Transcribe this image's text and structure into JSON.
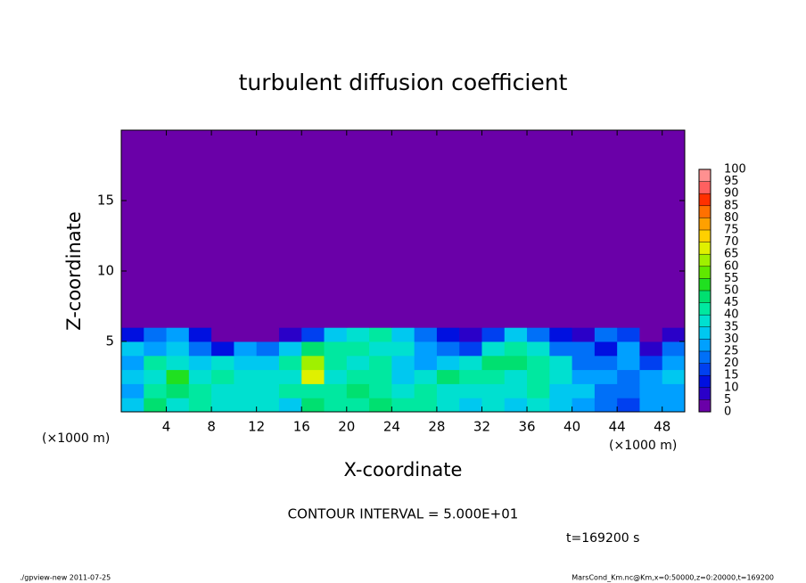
{
  "chart_data": {
    "type": "heatmap",
    "title": "turbulent diffusion coefficient",
    "x_label": "X-coordinate",
    "y_label": "Z-coordinate",
    "x_unit": "(×1000 m)",
    "xlim": [
      0,
      50
    ],
    "xticks": [
      4,
      8,
      12,
      16,
      20,
      24,
      28,
      32,
      36,
      40,
      44,
      48
    ],
    "ylim": [
      0,
      20
    ],
    "yticks": [
      5,
      10,
      15
    ],
    "x_edges": [
      0,
      2,
      4,
      6,
      8,
      10,
      12,
      14,
      16,
      18,
      20,
      22,
      24,
      26,
      28,
      30,
      32,
      34,
      36,
      38,
      40,
      42,
      44,
      46,
      48,
      50
    ],
    "y_edges": [
      0,
      1,
      2,
      3,
      4,
      5,
      6,
      7
    ],
    "values": [
      [
        30,
        45,
        35,
        40,
        35,
        35,
        35,
        30,
        45,
        40,
        40,
        45,
        40,
        40,
        35,
        30,
        35,
        30,
        35,
        30,
        25,
        20,
        15,
        25,
        25
      ],
      [
        25,
        40,
        45,
        40,
        35,
        35,
        35,
        40,
        40,
        40,
        45,
        40,
        35,
        40,
        35,
        35,
        35,
        35,
        40,
        30,
        30,
        20,
        20,
        25,
        25
      ],
      [
        30,
        35,
        50,
        35,
        40,
        35,
        35,
        35,
        65,
        35,
        40,
        40,
        30,
        35,
        45,
        40,
        40,
        35,
        40,
        35,
        25,
        25,
        20,
        25,
        30
      ],
      [
        25,
        40,
        35,
        30,
        35,
        30,
        30,
        40,
        60,
        40,
        35,
        40,
        30,
        25,
        30,
        35,
        45,
        45,
        40,
        35,
        20,
        20,
        25,
        15,
        25
      ],
      [
        30,
        25,
        30,
        20,
        10,
        25,
        20,
        30,
        45,
        40,
        40,
        35,
        35,
        25,
        20,
        15,
        35,
        40,
        35,
        20,
        20,
        10,
        25,
        5,
        20
      ],
      [
        10,
        20,
        25,
        10,
        0,
        0,
        0,
        5,
        15,
        30,
        35,
        40,
        30,
        20,
        10,
        5,
        15,
        30,
        20,
        10,
        5,
        20,
        15,
        0,
        5
      ],
      [
        0,
        0,
        0,
        0,
        0,
        0,
        0,
        0,
        0,
        0,
        0,
        0,
        0,
        0,
        0,
        0,
        0,
        0,
        0,
        0,
        0,
        0,
        0,
        0,
        0
      ]
    ],
    "levels": [
      0,
      5,
      10,
      15,
      20,
      25,
      30,
      35,
      40,
      45,
      50,
      55,
      60,
      65,
      70,
      75,
      80,
      85,
      90,
      95,
      100
    ],
    "colors": [
      "#6a00a8",
      "#2a00c8",
      "#0010e0",
      "#0040f0",
      "#0070f8",
      "#00a0ff",
      "#00c8f0",
      "#00e0d0",
      "#00e8a0",
      "#00e070",
      "#20e020",
      "#60e800",
      "#a0f000",
      "#e0f000",
      "#ffd000",
      "#ffa000",
      "#ff7000",
      "#ff3000",
      "#ff6060",
      "#ff9090"
    ],
    "annotations": [
      "CONTOUR INTERVAL = 5.000E+01",
      "t=169200 s"
    ],
    "footer_left": "./gpview-new   2011-07-25",
    "footer_right": "MarsCond_Km.nc@Km,x=0:50000,z=0:20000,t=169200"
  }
}
